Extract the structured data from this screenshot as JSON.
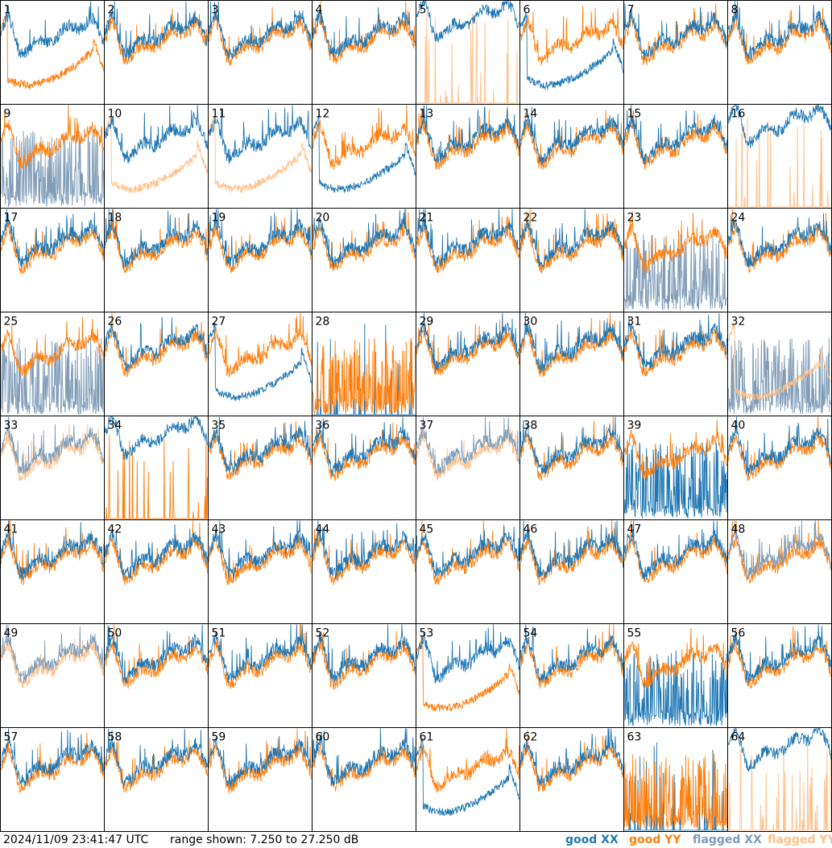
{
  "footer": {
    "timestamp": "2024/11/09 23:41:47 UTC",
    "range_text": "range shown: 7.250 to 27.250 dB"
  },
  "legend": [
    {
      "label": "good XX",
      "color": "#1f77b4"
    },
    {
      "label": "good YY",
      "color": "#ff7f0e"
    },
    {
      "label": "flagged XX",
      "color": "#7f9cb8"
    },
    {
      "label": "flagged YY",
      "color": "#ffbf87"
    }
  ],
  "chart_data": {
    "type": "line",
    "layout": "8x8 grid of per-antenna spectra",
    "ylim": [
      7.25,
      27.25
    ],
    "yunit": "dB",
    "grid": false,
    "legend_position": "bottom-right",
    "panels": [
      {
        "label": "1",
        "xx": "good",
        "yy": "good",
        "shape": "A",
        "dip": "yy"
      },
      {
        "label": "2",
        "xx": "good",
        "yy": "good",
        "shape": "N"
      },
      {
        "label": "3",
        "xx": "good",
        "yy": "good",
        "shape": "N"
      },
      {
        "label": "4",
        "xx": "good",
        "yy": "good",
        "shape": "N"
      },
      {
        "label": "5",
        "xx": "good",
        "yy": "flagged",
        "shape": "D",
        "xx_level": "high",
        "yy_spiky": true
      },
      {
        "label": "6",
        "xx": "good",
        "yy": "good",
        "shape": "A",
        "dip": "xx"
      },
      {
        "label": "7",
        "xx": "good",
        "yy": "good",
        "shape": "N"
      },
      {
        "label": "8",
        "xx": "good",
        "yy": "good",
        "shape": "N"
      },
      {
        "label": "9",
        "xx": "flagged",
        "yy": "good",
        "shape": "N",
        "xx_spiky": true
      },
      {
        "label": "10",
        "xx": "good",
        "yy": "flagged",
        "shape": "A",
        "dip": "yy"
      },
      {
        "label": "11",
        "xx": "good",
        "yy": "flagged",
        "shape": "A",
        "dip": "yy"
      },
      {
        "label": "12",
        "xx": "good",
        "yy": "good",
        "shape": "A",
        "dip": "xx"
      },
      {
        "label": "13",
        "xx": "good",
        "yy": "good",
        "shape": "N"
      },
      {
        "label": "14",
        "xx": "good",
        "yy": "good",
        "shape": "N"
      },
      {
        "label": "15",
        "xx": "good",
        "yy": "good",
        "shape": "N"
      },
      {
        "label": "16",
        "xx": "good",
        "yy": "flagged",
        "shape": "D",
        "xx_level": "high",
        "yy_spiky": true
      },
      {
        "label": "17",
        "xx": "good",
        "yy": "good",
        "shape": "N"
      },
      {
        "label": "18",
        "xx": "good",
        "yy": "good",
        "shape": "N"
      },
      {
        "label": "19",
        "xx": "good",
        "yy": "good",
        "shape": "N"
      },
      {
        "label": "20",
        "xx": "good",
        "yy": "good",
        "shape": "N"
      },
      {
        "label": "21",
        "xx": "good",
        "yy": "good",
        "shape": "N"
      },
      {
        "label": "22",
        "xx": "good",
        "yy": "good",
        "shape": "N"
      },
      {
        "label": "23",
        "xx": "flagged",
        "yy": "good",
        "shape": "N",
        "xx_spiky": true
      },
      {
        "label": "24",
        "xx": "good",
        "yy": "good",
        "shape": "N"
      },
      {
        "label": "25",
        "xx": "flagged",
        "yy": "good",
        "shape": "N",
        "xx_spiky": true
      },
      {
        "label": "26",
        "xx": "good",
        "yy": "good",
        "shape": "N"
      },
      {
        "label": "27",
        "xx": "good",
        "yy": "good",
        "shape": "A",
        "dip": "xx"
      },
      {
        "label": "28",
        "xx": "good",
        "yy": "good",
        "shape": "S"
      },
      {
        "label": "29",
        "xx": "good",
        "yy": "good",
        "shape": "N"
      },
      {
        "label": "30",
        "xx": "good",
        "yy": "good",
        "shape": "N"
      },
      {
        "label": "31",
        "xx": "good",
        "yy": "good",
        "shape": "N"
      },
      {
        "label": "32",
        "xx": "flagged",
        "yy": "flagged",
        "shape": "A",
        "dip": "yy",
        "xx_spiky": true
      },
      {
        "label": "33",
        "xx": "flagged",
        "yy": "flagged",
        "shape": "N"
      },
      {
        "label": "34",
        "xx": "good",
        "yy": "good",
        "shape": "D",
        "xx_level": "high",
        "yy_spiky": true
      },
      {
        "label": "35",
        "xx": "good",
        "yy": "good",
        "shape": "N"
      },
      {
        "label": "36",
        "xx": "good",
        "yy": "good",
        "shape": "N"
      },
      {
        "label": "37",
        "xx": "flagged",
        "yy": "flagged",
        "shape": "N"
      },
      {
        "label": "38",
        "xx": "good",
        "yy": "good",
        "shape": "N"
      },
      {
        "label": "39",
        "xx": "good",
        "yy": "good",
        "shape": "N",
        "xx_spiky": true
      },
      {
        "label": "40",
        "xx": "good",
        "yy": "good",
        "shape": "N"
      },
      {
        "label": "41",
        "xx": "good",
        "yy": "good",
        "shape": "N"
      },
      {
        "label": "42",
        "xx": "good",
        "yy": "good",
        "shape": "N"
      },
      {
        "label": "43",
        "xx": "good",
        "yy": "good",
        "shape": "N"
      },
      {
        "label": "44",
        "xx": "good",
        "yy": "good",
        "shape": "N"
      },
      {
        "label": "45",
        "xx": "good",
        "yy": "good",
        "shape": "N"
      },
      {
        "label": "46",
        "xx": "good",
        "yy": "good",
        "shape": "N"
      },
      {
        "label": "47",
        "xx": "good",
        "yy": "good",
        "shape": "N"
      },
      {
        "label": "48",
        "xx": "flagged",
        "yy": "good",
        "shape": "N"
      },
      {
        "label": "49",
        "xx": "flagged",
        "yy": "flagged",
        "shape": "N"
      },
      {
        "label": "50",
        "xx": "good",
        "yy": "good",
        "shape": "N"
      },
      {
        "label": "51",
        "xx": "good",
        "yy": "good",
        "shape": "N"
      },
      {
        "label": "52",
        "xx": "good",
        "yy": "good",
        "shape": "N"
      },
      {
        "label": "53",
        "xx": "good",
        "yy": "good",
        "shape": "A",
        "dip": "yy"
      },
      {
        "label": "54",
        "xx": "good",
        "yy": "good",
        "shape": "N"
      },
      {
        "label": "55",
        "xx": "good",
        "yy": "good",
        "shape": "N",
        "xx_spiky": true
      },
      {
        "label": "56",
        "xx": "good",
        "yy": "good",
        "shape": "N"
      },
      {
        "label": "57",
        "xx": "good",
        "yy": "good",
        "shape": "N"
      },
      {
        "label": "58",
        "xx": "good",
        "yy": "good",
        "shape": "N"
      },
      {
        "label": "59",
        "xx": "good",
        "yy": "good",
        "shape": "N"
      },
      {
        "label": "60",
        "xx": "good",
        "yy": "good",
        "shape": "N"
      },
      {
        "label": "61",
        "xx": "good",
        "yy": "good",
        "shape": "A",
        "dip": "xx"
      },
      {
        "label": "62",
        "xx": "good",
        "yy": "good",
        "shape": "N"
      },
      {
        "label": "63",
        "xx": "good",
        "yy": "good",
        "shape": "S"
      },
      {
        "label": "64",
        "xx": "good",
        "yy": "flagged",
        "shape": "D",
        "xx_level": "high",
        "yy_spiky": true
      }
    ]
  }
}
